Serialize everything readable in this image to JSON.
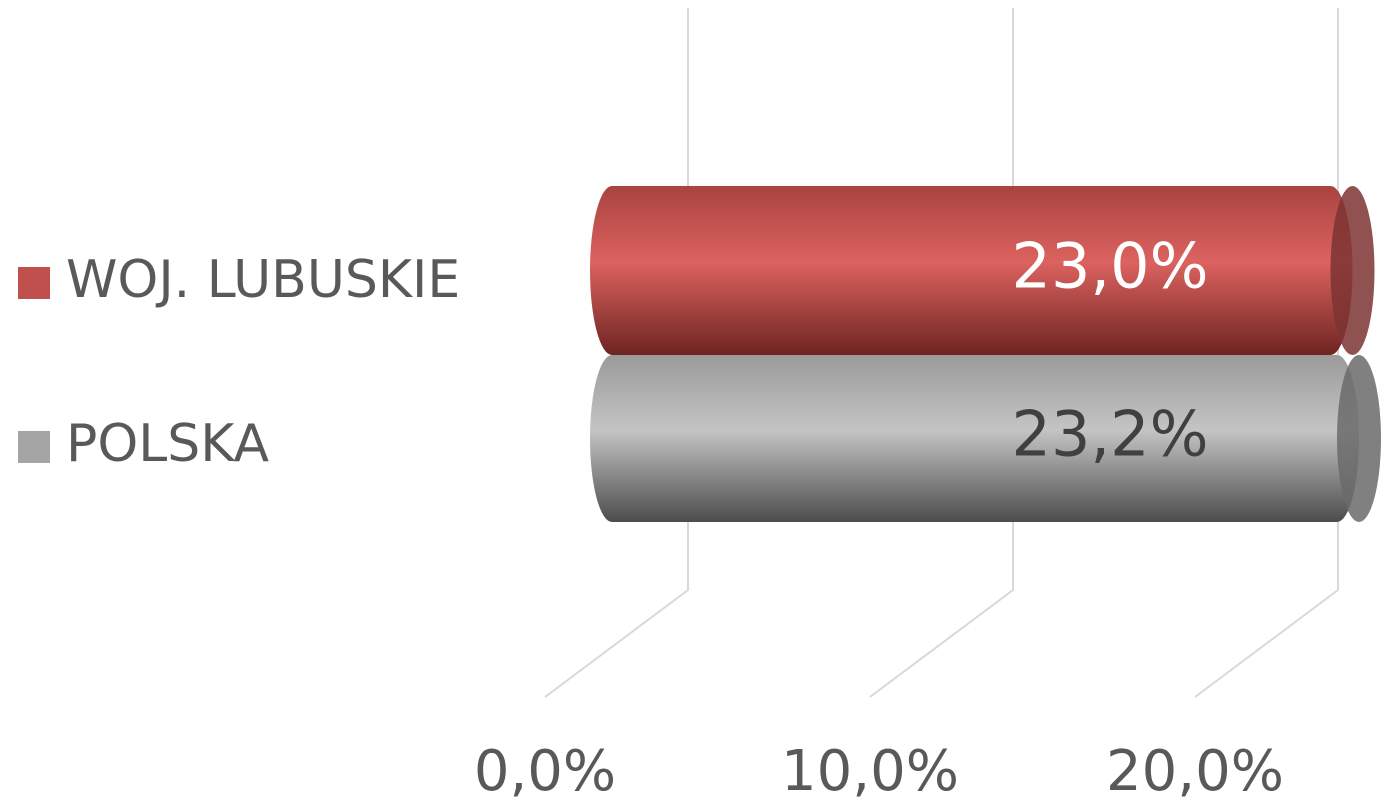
{
  "chart_data": {
    "type": "bar3d_horizontal",
    "series": [
      {
        "name": "WOJ. LUBUSKIE",
        "color": "#c0504d",
        "values": [
          23.0
        ],
        "value_labels": [
          "23,0%"
        ]
      },
      {
        "name": "POLSKA",
        "color": "#a5a5a5",
        "values": [
          23.2
        ],
        "value_labels": [
          "23,2%"
        ]
      }
    ],
    "xlim": [
      0,
      25
    ],
    "xticks": [
      {
        "value": 0,
        "label": "0,0%"
      },
      {
        "value": 10,
        "label": "10,0%"
      },
      {
        "value": 20,
        "label": "20,0%"
      }
    ],
    "grid": true,
    "legend": "left"
  }
}
